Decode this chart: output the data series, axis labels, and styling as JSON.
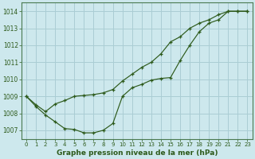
{
  "title": "Graphe pression niveau de la mer (hPa)",
  "background_color": "#cde8ed",
  "grid_color": "#aacdd4",
  "line_color": "#2d5a1b",
  "spine_color": "#4a7a50",
  "xlim": [
    -0.5,
    23.5
  ],
  "ylim": [
    1006.5,
    1014.5
  ],
  "yticks": [
    1007,
    1008,
    1009,
    1010,
    1011,
    1012,
    1013,
    1014
  ],
  "xticks": [
    0,
    1,
    2,
    3,
    4,
    5,
    6,
    7,
    8,
    9,
    10,
    11,
    12,
    13,
    14,
    15,
    16,
    17,
    18,
    19,
    20,
    21,
    22,
    23
  ],
  "line1_x": [
    0,
    1,
    2,
    3,
    4,
    5,
    6,
    7,
    8,
    9,
    10,
    11,
    12,
    13,
    14,
    15,
    16,
    17,
    18,
    19,
    20,
    21,
    22,
    23
  ],
  "line1_y": [
    1009.0,
    1008.4,
    1007.9,
    1007.5,
    1007.1,
    1007.05,
    1006.85,
    1006.85,
    1007.0,
    1007.4,
    1009.0,
    1009.5,
    1009.7,
    1009.95,
    1010.05,
    1010.1,
    1011.1,
    1012.0,
    1012.8,
    1013.3,
    1013.5,
    1014.0,
    1014.0,
    1014.0
  ],
  "line2_x": [
    0,
    1,
    2,
    3,
    4,
    5,
    6,
    7,
    8,
    9,
    10,
    11,
    12,
    13,
    14,
    15,
    16,
    17,
    18,
    19,
    20,
    21,
    22,
    23
  ],
  "line2_y": [
    1009.0,
    1008.5,
    1008.1,
    1008.55,
    1008.75,
    1009.0,
    1009.05,
    1009.1,
    1009.2,
    1009.4,
    1009.9,
    1010.3,
    1010.7,
    1011.0,
    1011.5,
    1012.2,
    1012.5,
    1013.0,
    1013.3,
    1013.5,
    1013.8,
    1014.0,
    1014.0,
    1014.0
  ],
  "ylabel_fontsize": 5.5,
  "xlabel_fontsize": 6.5,
  "tick_fontsize": 5.0
}
